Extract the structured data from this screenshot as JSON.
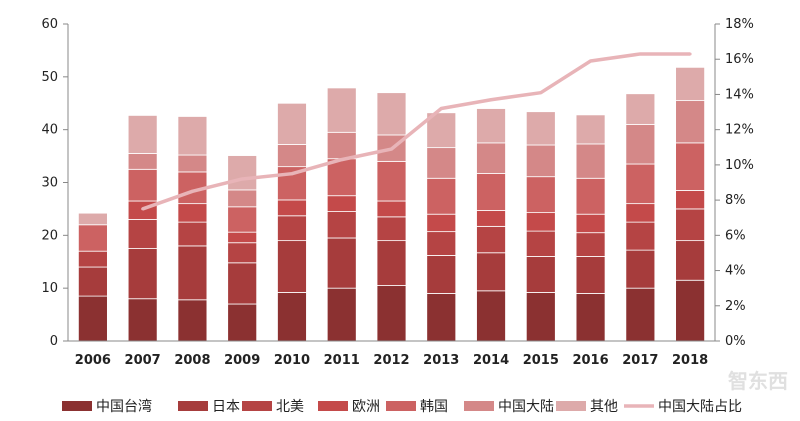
{
  "chart_data": {
    "type": "bar",
    "stacked": true,
    "categories": [
      "2006",
      "2007",
      "2008",
      "2009",
      "2010",
      "2011",
      "2012",
      "2013",
      "2014",
      "2015",
      "2016",
      "2017",
      "2018"
    ],
    "series": [
      {
        "name": "中国台湾",
        "color": "#8b3131",
        "values": [
          8.5,
          8.0,
          7.8,
          7.0,
          9.2,
          10.0,
          10.5,
          9.0,
          9.5,
          9.2,
          9.0,
          10.0,
          11.5
        ]
      },
      {
        "name": "日本",
        "color": "#a63c3c",
        "values": [
          5.5,
          9.5,
          10.2,
          7.8,
          9.8,
          9.5,
          8.5,
          7.2,
          7.2,
          6.8,
          7.0,
          7.2,
          7.5
        ]
      },
      {
        "name": "北美",
        "color": "#b54444",
        "values": [
          3.0,
          5.5,
          4.5,
          3.8,
          4.7,
          5.0,
          4.5,
          4.5,
          5.0,
          4.8,
          4.5,
          5.3,
          6.0
        ]
      },
      {
        "name": "欧洲",
        "color": "#c44a4a",
        "values": [
          0,
          3.5,
          3.5,
          2.0,
          3.0,
          3.0,
          3.0,
          3.3,
          3.0,
          3.5,
          3.5,
          3.5,
          3.5
        ]
      },
      {
        "name": "韩国",
        "color": "#cc6262",
        "values": [
          5.0,
          6.0,
          6.0,
          4.8,
          6.3,
          7.0,
          7.5,
          6.8,
          7.0,
          6.8,
          6.8,
          7.5,
          9.0
        ]
      },
      {
        "name": "中国大陆",
        "color": "#d48888",
        "values": [
          0,
          3.0,
          3.2,
          3.2,
          4.2,
          5.0,
          5.0,
          5.8,
          5.8,
          6.0,
          6.5,
          7.5,
          8.0
        ]
      },
      {
        "name": "其他",
        "color": "#ddaaaa",
        "values": [
          2.2,
          7.2,
          7.3,
          6.5,
          7.8,
          8.4,
          8.0,
          6.6,
          6.5,
          6.3,
          5.5,
          5.8,
          6.3
        ]
      }
    ],
    "line": {
      "name": "中国大陆占比",
      "color": "#e8b4b8",
      "categories_start": 1,
      "values": [
        7.5,
        8.5,
        9.2,
        9.5,
        10.3,
        10.9,
        13.2,
        13.7,
        14.1,
        15.9,
        16.3,
        16.3
      ]
    },
    "y_left": {
      "min": 0,
      "max": 60,
      "step": 10,
      "ticks": [
        "0",
        "10",
        "20",
        "30",
        "40",
        "50",
        "60"
      ]
    },
    "y_right": {
      "min": 0,
      "max": 18,
      "step": 2,
      "ticks": [
        "0%",
        "2%",
        "4%",
        "6%",
        "8%",
        "10%",
        "12%",
        "14%",
        "16%",
        "18%"
      ]
    },
    "title": "",
    "xlabel": "",
    "ylabel": "",
    "grid": false,
    "legend_position": "bottom"
  },
  "watermark": "智东西"
}
